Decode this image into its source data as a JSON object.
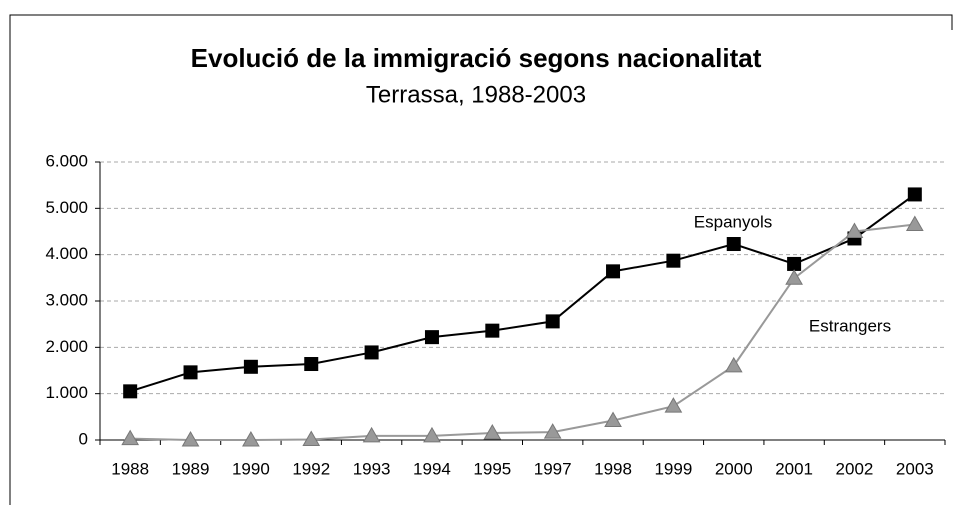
{
  "chart_data": {
    "type": "line",
    "title": "Evolució de la immigració segons nacionalitat",
    "subtitle": "Terrassa, 1988-2003",
    "categories": [
      "1988",
      "1989",
      "1990",
      "1992",
      "1993",
      "1994",
      "1995",
      "1997",
      "1998",
      "1999",
      "2000",
      "2001",
      "2002",
      "2003"
    ],
    "series": [
      {
        "name": "Espanyols",
        "color": "#000000",
        "marker": "square",
        "values": [
          1050,
          1460,
          1580,
          1640,
          1890,
          2220,
          2360,
          2560,
          3640,
          3870,
          4230,
          3800,
          4350,
          5300
        ]
      },
      {
        "name": "Estrangers",
        "color": "#999999",
        "marker": "triangle",
        "values": [
          30,
          0,
          0,
          10,
          90,
          90,
          150,
          170,
          420,
          730,
          1600,
          3490,
          4500,
          4650
        ]
      }
    ],
    "ylim": [
      0,
      6000
    ],
    "yticks": [
      0,
      {
        "value": 1000,
        "label": "1.000"
      },
      {
        "value": 2000,
        "label": "2.000"
      },
      {
        "value": 3000,
        "label": "3.000"
      },
      {
        "value": 4000,
        "label": "4.000"
      },
      {
        "value": 5000,
        "label": "5.000"
      },
      {
        "value": 6000,
        "label": "6.000"
      }
    ],
    "grid": true
  }
}
